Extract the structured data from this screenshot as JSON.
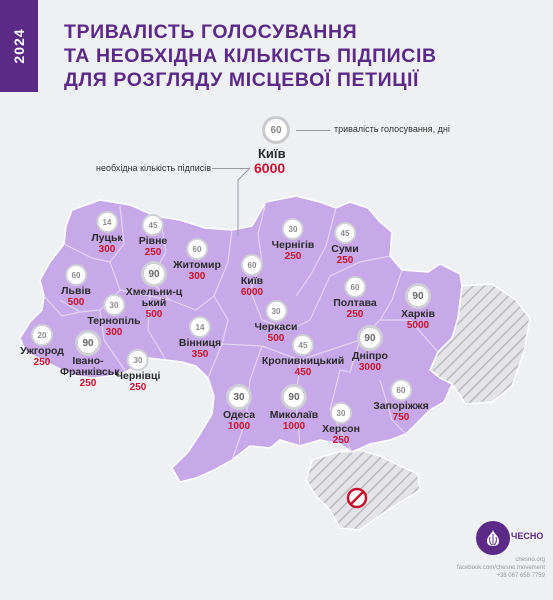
{
  "year": "2024",
  "title_lines": [
    "ТРИВАЛІСТЬ ГОЛОСУВАННЯ",
    "ТА НЕОБХІДНА КІЛЬКІСТЬ ПІДПИСІВ",
    "ДЛЯ РОЗГЛЯДУ МІСЦЕВОЇ ПЕТИЦІЇ"
  ],
  "legend": {
    "days_value": "60",
    "days_label": "тривалість голосування, дні",
    "signatures_label": "необхідна кількість підписів",
    "city": "Київ",
    "signatures_value": "6000"
  },
  "colors": {
    "brand": "#5b2a86",
    "map_fill": "#c7a8e8",
    "signatures": "#c8102e",
    "occupied": "#dcdce0"
  },
  "cities": [
    {
      "name": "Луцьк",
      "days": "14",
      "signatures": "300"
    },
    {
      "name": "Рівне",
      "days": "45",
      "signatures": "250"
    },
    {
      "name": "Житомир",
      "days": "60",
      "signatures": "300"
    },
    {
      "name": "Чернігів",
      "days": "30",
      "signatures": "250"
    },
    {
      "name": "Суми",
      "days": "45",
      "signatures": "250"
    },
    {
      "name": "Київ",
      "days": "60",
      "signatures": "6000"
    },
    {
      "name": "Львів",
      "days": "60",
      "signatures": "500"
    },
    {
      "name": "Хмельни-цький",
      "days": "90",
      "signatures": "500"
    },
    {
      "name": "Тернопіль",
      "days": "30",
      "signatures": "300"
    },
    {
      "name": "Полтава",
      "days": "60",
      "signatures": "250"
    },
    {
      "name": "Харків",
      "days": "90",
      "signatures": "5000"
    },
    {
      "name": "Ужгород",
      "days": "20",
      "signatures": "250"
    },
    {
      "name": "Івано-Франківськ",
      "days": "90",
      "signatures": "250"
    },
    {
      "name": "Вінниця",
      "days": "14",
      "signatures": "350"
    },
    {
      "name": "Черкаси",
      "days": "30",
      "signatures": "500"
    },
    {
      "name": "Чернівці",
      "days": "30",
      "signatures": "250"
    },
    {
      "name": "Кропивницький",
      "days": "45",
      "signatures": "450"
    },
    {
      "name": "Дніпро",
      "days": "90",
      "signatures": "3000"
    },
    {
      "name": "Одеса",
      "days": "30",
      "signatures": "1000"
    },
    {
      "name": "Миколаїв",
      "days": "90",
      "signatures": "1000"
    },
    {
      "name": "Херсон",
      "days": "30",
      "signatures": "250"
    },
    {
      "name": "Запоріжжя",
      "days": "60",
      "signatures": "750"
    }
  ],
  "logo": {
    "name": "ЧЕСНО"
  },
  "contacts": [
    "chesno.org",
    "facebook.com/chesno.movement",
    "+38 067 658 7759"
  ]
}
